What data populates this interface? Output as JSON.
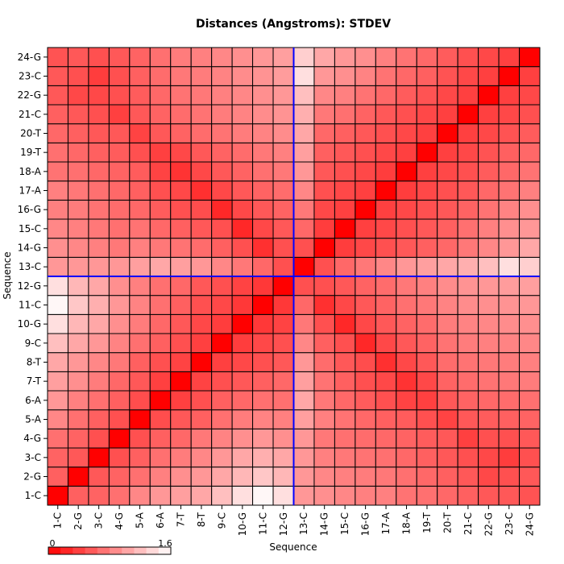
{
  "chart_data": {
    "type": "heatmap",
    "title": "Distances (Angstroms):  STDEV",
    "xlabel": "Sequence",
    "ylabel": "Sequence",
    "labels": [
      "1-C",
      "2-G",
      "3-C",
      "4-G",
      "5-A",
      "6-A",
      "7-T",
      "8-T",
      "9-C",
      "10-G",
      "11-C",
      "12-G",
      "13-C",
      "14-G",
      "15-C",
      "16-G",
      "17-A",
      "18-A",
      "19-T",
      "20-T",
      "21-C",
      "22-G",
      "23-C",
      "24-G"
    ],
    "values": [
      [
        0.0,
        0.6,
        0.62,
        0.7,
        0.85,
        0.95,
        1.0,
        1.05,
        1.2,
        1.4,
        1.55,
        1.4,
        0.95,
        0.9,
        0.85,
        0.8,
        0.8,
        0.72,
        0.7,
        0.65,
        0.6,
        0.55,
        0.55,
        0.52
      ],
      [
        0.6,
        0.0,
        0.55,
        0.62,
        0.7,
        0.8,
        0.9,
        0.95,
        1.05,
        1.15,
        1.25,
        1.15,
        0.95,
        0.85,
        0.8,
        0.78,
        0.75,
        0.7,
        0.65,
        0.6,
        0.55,
        0.45,
        0.5,
        0.55
      ],
      [
        0.62,
        0.55,
        0.0,
        0.5,
        0.6,
        0.7,
        0.78,
        0.85,
        0.95,
        1.05,
        1.1,
        1.05,
        0.95,
        0.8,
        0.75,
        0.72,
        0.7,
        0.65,
        0.6,
        0.55,
        0.5,
        0.45,
        0.38,
        0.5
      ],
      [
        0.7,
        0.62,
        0.5,
        0.0,
        0.5,
        0.6,
        0.65,
        0.75,
        0.82,
        0.9,
        0.95,
        0.9,
        0.95,
        0.75,
        0.7,
        0.68,
        0.65,
        0.62,
        0.58,
        0.55,
        0.4,
        0.5,
        0.5,
        0.55
      ],
      [
        0.85,
        0.7,
        0.6,
        0.5,
        0.0,
        0.48,
        0.55,
        0.6,
        0.7,
        0.78,
        0.82,
        0.8,
        1.0,
        0.8,
        0.72,
        0.65,
        0.6,
        0.58,
        0.5,
        0.42,
        0.55,
        0.58,
        0.6,
        0.62
      ],
      [
        0.95,
        0.8,
        0.7,
        0.6,
        0.48,
        0.0,
        0.4,
        0.5,
        0.6,
        0.65,
        0.7,
        0.7,
        1.05,
        0.75,
        0.65,
        0.58,
        0.5,
        0.42,
        0.4,
        0.55,
        0.62,
        0.65,
        0.68,
        0.7
      ],
      [
        1.0,
        0.9,
        0.78,
        0.65,
        0.55,
        0.4,
        0.0,
        0.42,
        0.5,
        0.55,
        0.6,
        0.65,
        1.0,
        0.72,
        0.6,
        0.5,
        0.45,
        0.32,
        0.45,
        0.62,
        0.68,
        0.72,
        0.75,
        0.78
      ],
      [
        1.05,
        0.95,
        0.85,
        0.75,
        0.6,
        0.5,
        0.42,
        0.0,
        0.4,
        0.45,
        0.5,
        0.55,
        0.95,
        0.68,
        0.55,
        0.48,
        0.3,
        0.45,
        0.55,
        0.68,
        0.72,
        0.75,
        0.78,
        0.8
      ],
      [
        1.2,
        1.05,
        0.95,
        0.82,
        0.7,
        0.6,
        0.5,
        0.4,
        0.0,
        0.38,
        0.45,
        0.5,
        0.85,
        0.6,
        0.5,
        0.25,
        0.45,
        0.55,
        0.62,
        0.72,
        0.78,
        0.8,
        0.82,
        0.85
      ],
      [
        1.4,
        1.15,
        1.05,
        0.9,
        0.78,
        0.65,
        0.55,
        0.45,
        0.38,
        0.0,
        0.35,
        0.42,
        0.75,
        0.5,
        0.25,
        0.45,
        0.55,
        0.62,
        0.68,
        0.78,
        0.82,
        0.85,
        0.88,
        0.9
      ],
      [
        1.55,
        1.25,
        1.1,
        0.95,
        0.82,
        0.7,
        0.6,
        0.5,
        0.45,
        0.35,
        0.0,
        0.35,
        0.65,
        0.3,
        0.45,
        0.55,
        0.62,
        0.7,
        0.75,
        0.82,
        0.88,
        0.9,
        0.92,
        0.95
      ],
      [
        1.4,
        1.15,
        1.05,
        0.9,
        0.8,
        0.7,
        0.65,
        0.55,
        0.5,
        0.42,
        0.35,
        0.0,
        0.5,
        0.5,
        0.55,
        0.62,
        0.68,
        0.75,
        0.8,
        0.88,
        0.92,
        0.95,
        0.98,
        1.0
      ],
      [
        0.95,
        0.95,
        0.95,
        0.95,
        1.0,
        1.05,
        1.0,
        0.95,
        0.85,
        0.75,
        0.65,
        0.5,
        0.0,
        0.5,
        0.65,
        0.75,
        0.85,
        0.95,
        1.0,
        1.05,
        1.1,
        1.2,
        1.4,
        1.3
      ],
      [
        0.9,
        0.85,
        0.8,
        0.75,
        0.8,
        0.75,
        0.72,
        0.68,
        0.6,
        0.5,
        0.3,
        0.5,
        0.5,
        0.0,
        0.38,
        0.45,
        0.5,
        0.55,
        0.6,
        0.65,
        0.75,
        0.85,
        0.95,
        1.05
      ],
      [
        0.85,
        0.8,
        0.75,
        0.7,
        0.72,
        0.65,
        0.6,
        0.55,
        0.5,
        0.25,
        0.45,
        0.55,
        0.65,
        0.38,
        0.0,
        0.4,
        0.45,
        0.5,
        0.55,
        0.6,
        0.7,
        0.8,
        0.9,
        0.95
      ],
      [
        0.8,
        0.78,
        0.72,
        0.68,
        0.65,
        0.58,
        0.5,
        0.48,
        0.25,
        0.45,
        0.55,
        0.62,
        0.75,
        0.45,
        0.4,
        0.0,
        0.4,
        0.45,
        0.5,
        0.55,
        0.62,
        0.72,
        0.82,
        0.9
      ],
      [
        0.8,
        0.75,
        0.7,
        0.65,
        0.6,
        0.5,
        0.45,
        0.3,
        0.45,
        0.55,
        0.62,
        0.68,
        0.85,
        0.5,
        0.45,
        0.4,
        0.0,
        0.38,
        0.45,
        0.5,
        0.55,
        0.65,
        0.72,
        0.8
      ],
      [
        0.72,
        0.7,
        0.65,
        0.62,
        0.58,
        0.42,
        0.32,
        0.45,
        0.55,
        0.62,
        0.7,
        0.75,
        0.95,
        0.55,
        0.5,
        0.45,
        0.38,
        0.0,
        0.4,
        0.45,
        0.5,
        0.58,
        0.65,
        0.72
      ],
      [
        0.7,
        0.65,
        0.6,
        0.58,
        0.5,
        0.4,
        0.45,
        0.55,
        0.62,
        0.68,
        0.75,
        0.8,
        1.0,
        0.6,
        0.55,
        0.5,
        0.45,
        0.4,
        0.0,
        0.4,
        0.45,
        0.52,
        0.6,
        0.65
      ],
      [
        0.65,
        0.6,
        0.55,
        0.55,
        0.42,
        0.55,
        0.62,
        0.68,
        0.72,
        0.78,
        0.82,
        0.88,
        1.05,
        0.65,
        0.6,
        0.55,
        0.5,
        0.45,
        0.4,
        0.0,
        0.4,
        0.45,
        0.52,
        0.58
      ],
      [
        0.6,
        0.55,
        0.5,
        0.4,
        0.55,
        0.62,
        0.68,
        0.72,
        0.78,
        0.82,
        0.88,
        0.92,
        1.1,
        0.75,
        0.7,
        0.62,
        0.55,
        0.5,
        0.45,
        0.4,
        0.0,
        0.4,
        0.45,
        0.5
      ],
      [
        0.55,
        0.45,
        0.45,
        0.5,
        0.58,
        0.65,
        0.72,
        0.75,
        0.8,
        0.85,
        0.9,
        0.95,
        1.2,
        0.85,
        0.8,
        0.72,
        0.65,
        0.58,
        0.52,
        0.45,
        0.4,
        0.0,
        0.4,
        0.45
      ],
      [
        0.55,
        0.5,
        0.38,
        0.5,
        0.6,
        0.68,
        0.75,
        0.78,
        0.82,
        0.88,
        0.92,
        0.98,
        1.4,
        0.95,
        0.9,
        0.82,
        0.72,
        0.65,
        0.6,
        0.52,
        0.45,
        0.4,
        0.0,
        0.4
      ],
      [
        0.52,
        0.55,
        0.5,
        0.55,
        0.62,
        0.7,
        0.78,
        0.8,
        0.85,
        0.9,
        0.95,
        1.0,
        1.3,
        1.05,
        0.95,
        0.9,
        0.8,
        0.72,
        0.65,
        0.58,
        0.5,
        0.45,
        0.4,
        0.0
      ]
    ],
    "color_range": [
      0,
      1.6
    ],
    "legend_min_label": "0",
    "legend_max_label": "1.6",
    "legend_steps": 10,
    "color_low": "#ff0000",
    "color_high": "#ffffff",
    "highlight_index": 12,
    "highlight_color": "#0000ff"
  }
}
